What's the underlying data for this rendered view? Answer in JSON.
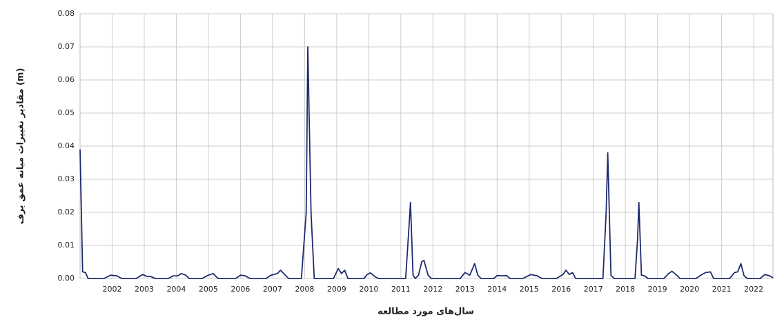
{
  "chart_data": {
    "type": "line",
    "ylabel": "مقادیر تغییرات میانه عمق برف (m)",
    "xlabel": "سال‌های مورد مطالعه",
    "xlim": [
      2001,
      2022.6
    ],
    "xticks": [
      2002,
      2003,
      2004,
      2005,
      2006,
      2007,
      2008,
      2009,
      2010,
      2011,
      2012,
      2013,
      2014,
      2015,
      2016,
      2017,
      2018,
      2019,
      2020,
      2021,
      2022
    ],
    "ylim": [
      0,
      0.08
    ],
    "yticks": [
      {
        "value": 0,
        "label": "0.00"
      },
      {
        "value": 0.01,
        "label": "0.01"
      },
      {
        "value": 0.02,
        "label": "0.02"
      },
      {
        "value": 0.03,
        "label": "0.03"
      },
      {
        "value": 0.04,
        "label": "0.04"
      },
      {
        "value": 0.05,
        "label": "0.05"
      },
      {
        "value": 0.06,
        "label": "0.06"
      },
      {
        "value": 0.07,
        "label": "0.07"
      },
      {
        "value": 0.08,
        "label": "0.08"
      }
    ],
    "grid": true,
    "color": "#1f2a6e",
    "x": [
      2001.0,
      2001.08,
      2001.17,
      2001.25,
      2001.75,
      2001.95,
      2002.15,
      2002.3,
      2002.75,
      2002.95,
      2003.1,
      2003.2,
      2003.35,
      2003.75,
      2003.9,
      2004.05,
      2004.15,
      2004.3,
      2004.4,
      2004.8,
      2005.0,
      2005.15,
      2005.3,
      2005.85,
      2006.0,
      2006.15,
      2006.3,
      2006.8,
      2006.95,
      2007.15,
      2007.25,
      2007.4,
      2007.5,
      2007.9,
      2008.05,
      2008.1,
      2008.2,
      2008.3,
      2008.9,
      2009.05,
      2009.15,
      2009.25,
      2009.35,
      2009.85,
      2009.95,
      2010.05,
      2010.2,
      2010.3,
      2011.15,
      2011.25,
      2011.3,
      2011.38,
      2011.45,
      2011.55,
      2011.65,
      2011.72,
      2011.85,
      2011.95,
      2012.85,
      2013.0,
      2013.15,
      2013.3,
      2013.4,
      2013.5,
      2013.9,
      2014.0,
      2014.15,
      2014.3,
      2014.4,
      2014.8,
      2015.05,
      2015.25,
      2015.4,
      2015.85,
      2016.05,
      2016.15,
      2016.25,
      2016.35,
      2016.45,
      2017.3,
      2017.4,
      2017.45,
      2017.55,
      2017.65,
      2018.3,
      2018.38,
      2018.42,
      2018.5,
      2018.6,
      2018.7,
      2019.2,
      2019.35,
      2019.45,
      2019.6,
      2019.7,
      2020.2,
      2020.35,
      2020.5,
      2020.65,
      2020.75,
      2021.25,
      2021.4,
      2021.5,
      2021.6,
      2021.7,
      2021.8,
      2022.2,
      2022.35,
      2022.5,
      2022.6
    ],
    "values": [
      0.039,
      0.002,
      0.0018,
      0,
      0,
      0.001,
      0.0008,
      0,
      0,
      0.0012,
      0.0006,
      0.0006,
      0,
      0,
      0.0008,
      0.0008,
      0.0015,
      0.001,
      0,
      0,
      0.001,
      0.0015,
      0,
      0,
      0.001,
      0.0008,
      0,
      0,
      0.001,
      0.0015,
      0.0025,
      0.001,
      0,
      0,
      0.02,
      0.07,
      0.02,
      0,
      0,
      0.003,
      0.0015,
      0.0025,
      0,
      0,
      0.0012,
      0.0017,
      0.0005,
      0,
      0,
      0.015,
      0.023,
      0.001,
      0,
      0.001,
      0.005,
      0.0055,
      0.001,
      0,
      0,
      0.0018,
      0.001,
      0.0045,
      0.001,
      0,
      0,
      0.0009,
      0.0008,
      0.0009,
      0,
      0,
      0.0012,
      0.0008,
      0,
      0,
      0.0012,
      0.0025,
      0.0012,
      0.0018,
      0,
      0,
      0.02,
      0.038,
      0.001,
      0,
      0,
      0.012,
      0.023,
      0.001,
      0.0008,
      0,
      0,
      0.0015,
      0.0022,
      0.001,
      0,
      0,
      0.001,
      0.0018,
      0.002,
      0,
      0,
      0.0018,
      0.002,
      0.0045,
      0.0008,
      0,
      0,
      0.0012,
      0.0008,
      0.0002
    ]
  }
}
